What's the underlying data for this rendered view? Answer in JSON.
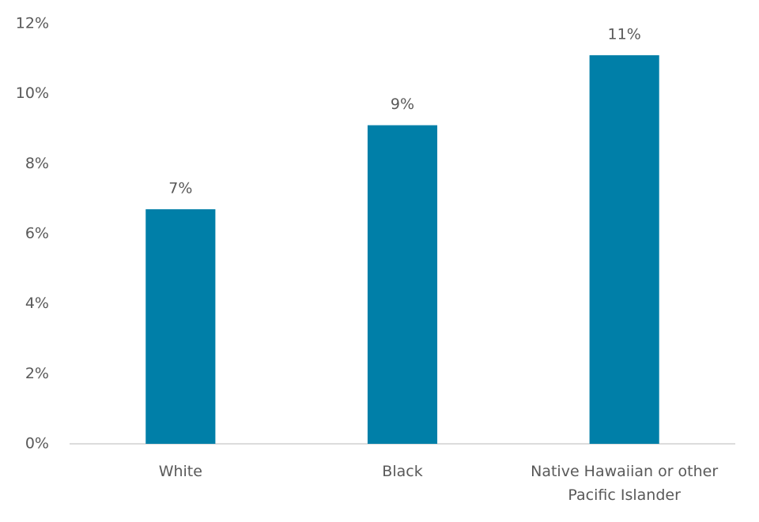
{
  "chart_data": {
    "type": "bar",
    "categories": [
      "White",
      "Black",
      "Native Hawaiian or other Pacific Islander"
    ],
    "values": [
      6.7,
      9.1,
      11.1
    ],
    "value_labels": [
      "7%",
      "9%",
      "11%"
    ],
    "color": "#007fa8",
    "ylim": [
      0,
      12
    ],
    "yticks": [
      {
        "value": 0,
        "label": "0%"
      },
      {
        "value": 2,
        "label": "2%"
      },
      {
        "value": 4,
        "label": "4%"
      },
      {
        "value": 6,
        "label": "6%"
      },
      {
        "value": 8,
        "label": "8%"
      },
      {
        "value": 10,
        "label": "10%"
      },
      {
        "value": 12,
        "label": "12%"
      }
    ],
    "grid": false
  }
}
